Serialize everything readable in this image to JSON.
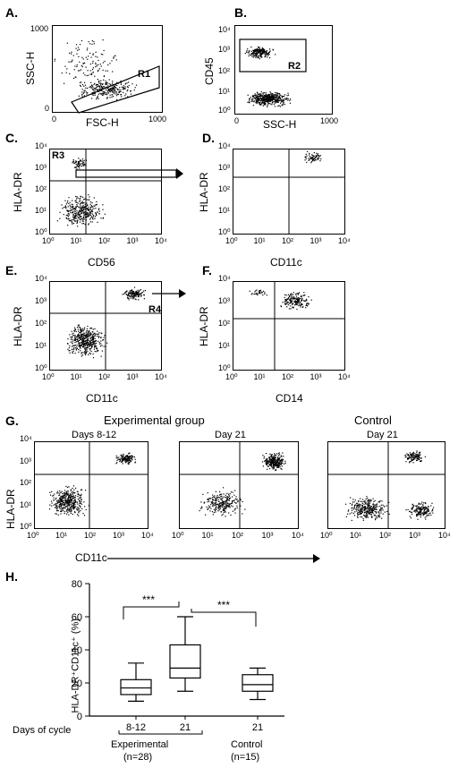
{
  "panels": {
    "A": {
      "label": "A.",
      "ylabel": "SSC-H",
      "xlabel": "FSC-H",
      "gate": "R1",
      "yticks": [
        "1000",
        "0"
      ],
      "xticks": [
        "0",
        "1000"
      ]
    },
    "B": {
      "label": "B.",
      "ylabel": "CD45",
      "xlabel": "SSC-H",
      "gate": "R2",
      "yticks": [
        "10⁴",
        "10³",
        "10²",
        "10¹",
        "10⁰"
      ],
      "xticks": [
        "0",
        "1000"
      ]
    },
    "C": {
      "label": "C.",
      "ylabel": "HLA-DR",
      "xlabel": "CD56",
      "gate": "R3"
    },
    "D": {
      "label": "D.",
      "ylabel": "HLA-DR",
      "xlabel": "CD11c"
    },
    "E": {
      "label": "E.",
      "ylabel": "HLA-DR",
      "xlabel": "CD11c",
      "gate": "R4"
    },
    "F": {
      "label": "F.",
      "ylabel": "HLA-DR",
      "xlabel": "CD14"
    }
  },
  "logticks": [
    "10⁰",
    "10¹",
    "10²",
    "10³",
    "10⁴"
  ],
  "panelG": {
    "label": "G.",
    "group_title": "Experimental group",
    "control_title": "Control",
    "subtitles": [
      "Days 8-12",
      "Day 21",
      "Day 21"
    ],
    "ylabel": "HLA-DR",
    "xlabel": "CD11c"
  },
  "panelH": {
    "label": "H.",
    "ylabel": "HLA-DR⁺CD11c⁺ (%)",
    "yticks": [
      "0",
      "20",
      "40",
      "60",
      "80"
    ],
    "sig": [
      "***",
      "***"
    ],
    "days_label": "Days of cycle",
    "groups": [
      {
        "day": "8-12",
        "group": "Experimental",
        "n": "(n=28)"
      },
      {
        "day": "21",
        "group": "",
        "n": ""
      },
      {
        "day": "21",
        "group": "Control",
        "n": "(n=15)"
      }
    ]
  },
  "chart_data": {
    "type": "box",
    "title": "",
    "xlabel": "Days of cycle",
    "ylabel": "HLA-DR⁺CD11c⁺ (%)",
    "ylim": [
      0,
      80
    ],
    "categories": [
      "8-12",
      "21",
      "21"
    ],
    "series": [
      {
        "name": "",
        "min": 9,
        "q1": 13,
        "median": 17,
        "q3": 22,
        "max": 32
      },
      {
        "name": "",
        "min": 15,
        "q1": 23,
        "median": 29,
        "q3": 43,
        "max": 60
      },
      {
        "name": "",
        "min": 10,
        "q1": 15,
        "median": 19,
        "q3": 25,
        "max": 29
      }
    ]
  }
}
